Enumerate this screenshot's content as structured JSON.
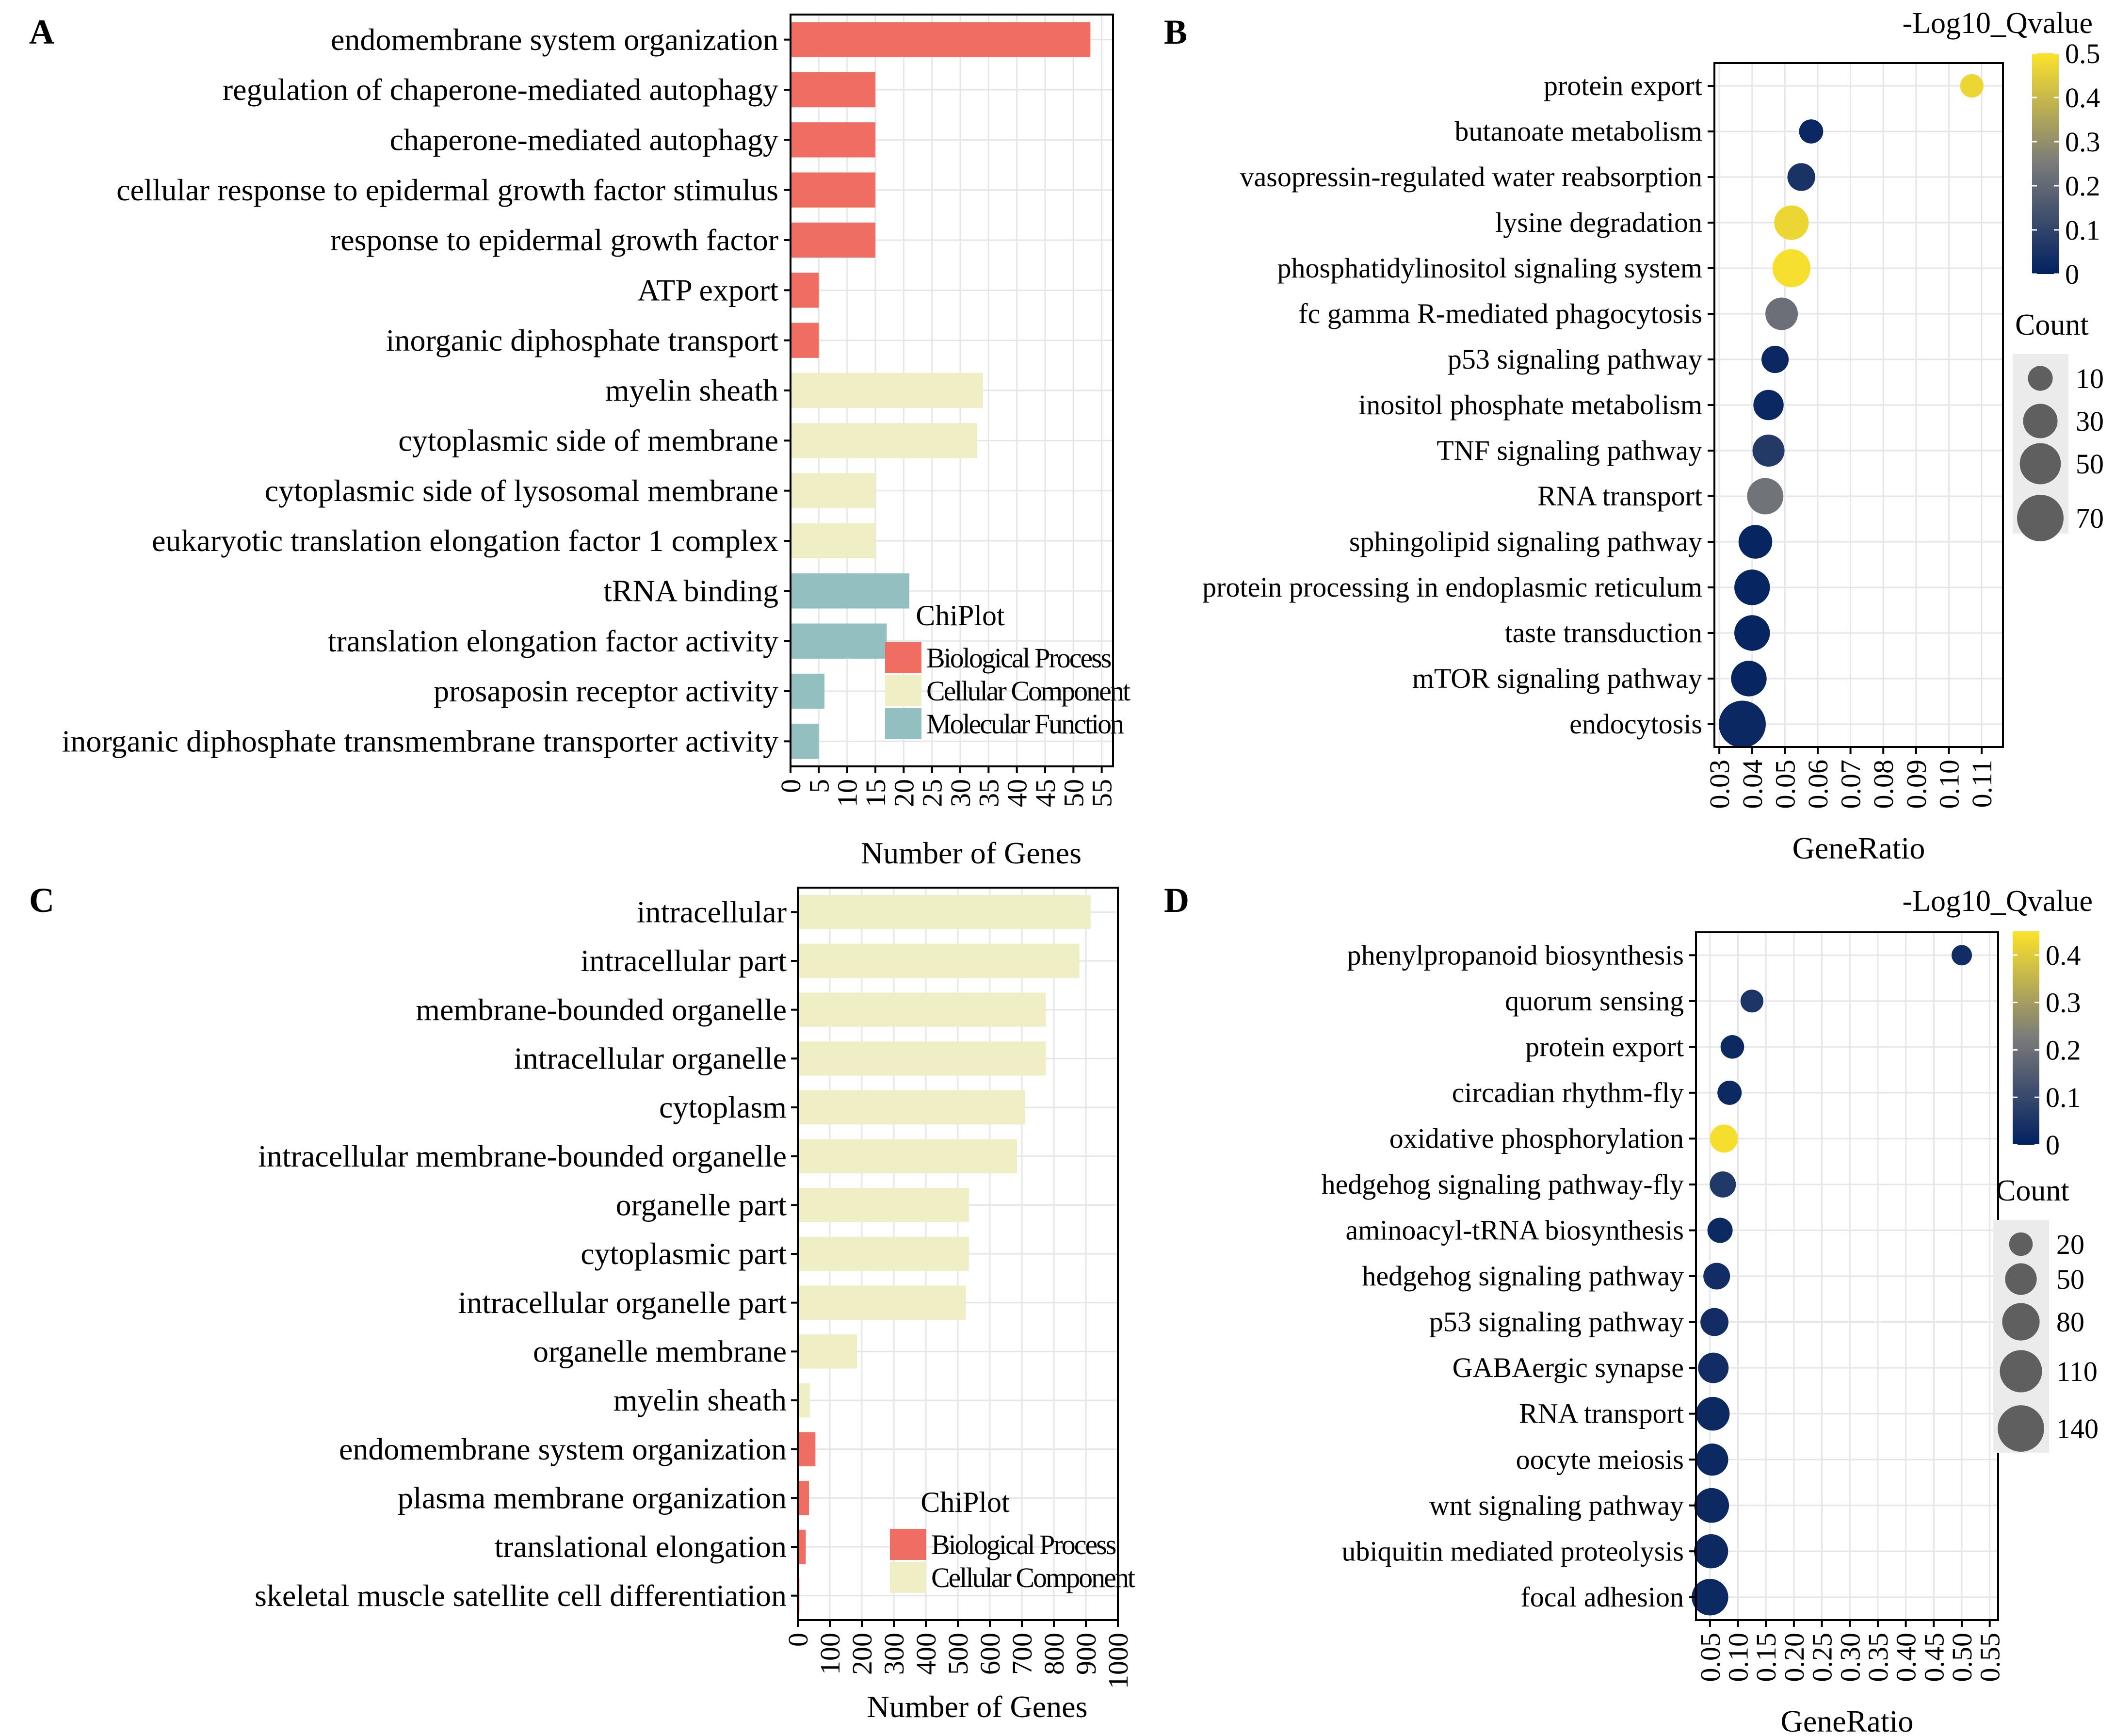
{
  "colors": {
    "bp": "#F06E61",
    "cc": "#F0EEC4",
    "mf": "#92C0C0",
    "grid": "#e6e6e6",
    "grad_low": "#012160",
    "grad_mid": "#7a7a7a",
    "grad_high": "#FBE32A",
    "point_gray": "#5f5f5f"
  },
  "chart_data": [
    {
      "panel": "A",
      "type": "bar",
      "orientation": "horizontal",
      "title": "",
      "xlabel": "Number of Genes",
      "ylabel": "",
      "xlim": [
        0,
        57
      ],
      "xticks": [
        "0",
        "5",
        "10",
        "15",
        "20",
        "25",
        "30",
        "35",
        "40",
        "45",
        "50",
        "55"
      ],
      "grid": true,
      "legend": {
        "title": "ChiPlot",
        "position": "bottom-right",
        "entries": [
          {
            "label": "Biological Process",
            "key": "bp"
          },
          {
            "label": "Cellular Component",
            "key": "cc"
          },
          {
            "label": "Molecular Function",
            "key": "mf"
          }
        ]
      },
      "categories": [
        "endomembrane system organization",
        "regulation of chaperone-mediated autophagy",
        "chaperone-mediated autophagy",
        "cellular response to epidermal growth factor stimulus",
        "response to epidermal growth factor",
        "ATP export",
        "inorganic diphosphate transport",
        "myelin sheath",
        "cytoplasmic side of membrane",
        "cytoplasmic side of lysosomal membrane",
        "eukaryotic translation elongation factor 1 complex",
        "tRNA binding",
        "translation elongation factor activity",
        "prosaposin receptor activity",
        "inorganic diphosphate transmembrane transporter activity"
      ],
      "values": [
        53,
        15,
        15,
        15,
        15,
        5,
        5,
        34,
        33,
        15,
        15,
        21,
        17,
        6,
        5
      ],
      "groups": [
        "bp",
        "bp",
        "bp",
        "bp",
        "bp",
        "bp",
        "bp",
        "cc",
        "cc",
        "cc",
        "cc",
        "mf",
        "mf",
        "mf",
        "mf"
      ]
    },
    {
      "panel": "B",
      "type": "scatter",
      "title": "",
      "xlabel": "GeneRatio",
      "ylabel": "",
      "xlim": [
        0.0285,
        0.1165
      ],
      "xticks": [
        "0.03",
        "0.04",
        "0.05",
        "0.06",
        "0.07",
        "0.08",
        "0.09",
        "0.10",
        "0.11"
      ],
      "grid": true,
      "color_legend": {
        "title": "-Log10_Qvalue",
        "min": 0,
        "max": 0.5,
        "ticks": [
          "0",
          "0.1",
          "0.2",
          "0.3",
          "0.4",
          "0.5"
        ]
      },
      "size_legend": {
        "title": "Count",
        "values": [
          10,
          30,
          50,
          70
        ],
        "labels": [
          "10",
          "30",
          "50",
          "70"
        ]
      },
      "categories": [
        "protein export",
        "butanoate metabolism",
        "vasopressin-regulated water reabsorption",
        "lysine degradation",
        "phosphatidylinositol signaling system",
        "fc gamma R-mediated phagocytosis",
        "p53 signaling pathway",
        "inositol phosphate metabolism",
        "TNF signaling pathway",
        "RNA transport",
        "sphingolipid signaling pathway",
        "protein processing in endoplasmic reticulum",
        "taste transduction",
        "mTOR signaling pathway",
        "endocytosis"
      ],
      "x": [
        0.107,
        0.058,
        0.055,
        0.052,
        0.052,
        0.049,
        0.047,
        0.045,
        0.045,
        0.044,
        0.041,
        0.04,
        0.04,
        0.039,
        0.037
      ],
      "q": [
        0.47,
        0.02,
        0.05,
        0.47,
        0.49,
        0.22,
        0.02,
        0.02,
        0.07,
        0.23,
        0.01,
        0.01,
        0.01,
        0.01,
        0.02
      ],
      "count": [
        8,
        9,
        15,
        30,
        40,
        25,
        14,
        20,
        24,
        35,
        28,
        33,
        33,
        33,
        72
      ]
    },
    {
      "panel": "C",
      "type": "bar",
      "orientation": "horizontal",
      "title": "",
      "xlabel": "Number of Genes",
      "ylabel": "",
      "xlim": [
        0,
        1000
      ],
      "xticks": [
        "0",
        "100",
        "200",
        "300",
        "400",
        "500",
        "600",
        "700",
        "800",
        "900",
        "1000"
      ],
      "grid": true,
      "legend": {
        "title": "ChiPlot",
        "position": "bottom-right",
        "entries": [
          {
            "label": "Biological Process",
            "key": "bp"
          },
          {
            "label": "Cellular Component",
            "key": "cc"
          }
        ]
      },
      "categories": [
        "intracellular",
        "intracellular part",
        "membrane-bounded organelle",
        "intracellular organelle",
        "cytoplasm",
        "intracellular membrane-bounded organelle",
        "organelle part",
        "cytoplasmic part",
        "intracellular organelle part",
        "organelle membrane",
        "myelin sheath",
        "endomembrane system organization",
        "plasma membrane organization",
        "translational elongation",
        "skeletal muscle satellite cell differentiation"
      ],
      "values": [
        915,
        880,
        775,
        775,
        710,
        685,
        535,
        535,
        525,
        185,
        38,
        55,
        35,
        25,
        5
      ],
      "groups": [
        "cc",
        "cc",
        "cc",
        "cc",
        "cc",
        "cc",
        "cc",
        "cc",
        "cc",
        "cc",
        "cc",
        "bp",
        "bp",
        "bp",
        "bp"
      ]
    },
    {
      "panel": "D",
      "type": "scatter",
      "title": "",
      "xlabel": "GeneRatio",
      "ylabel": "",
      "xlim": [
        0.025,
        0.565
      ],
      "xticks": [
        "0.05",
        "0.10",
        "0.15",
        "0.20",
        "0.25",
        "0.30",
        "0.35",
        "0.40",
        "0.45",
        "0.50",
        "0.55"
      ],
      "grid": true,
      "color_legend": {
        "title": "-Log10_Qvalue",
        "min": 0,
        "max": 0.45,
        "ticks": [
          "0",
          "0.1",
          "0.2",
          "0.3",
          "0.4"
        ]
      },
      "size_legend": {
        "title": "Count",
        "values": [
          20,
          50,
          80,
          110,
          140
        ],
        "labels": [
          "20",
          "50",
          "80",
          "110",
          "140"
        ]
      },
      "categories": [
        "phenylpropanoid biosynthesis",
        "quorum sensing",
        "protein export",
        "circadian rhythm-fly",
        "oxidative phosphorylation",
        "hedgehog signaling pathway-fly",
        "aminoacyl-tRNA biosynthesis",
        "hedgehog signaling pathway",
        "p53 signaling pathway",
        "GABAergic synapse",
        "RNA transport",
        "oocyte meiosis",
        "wnt signaling pathway",
        "ubiquitin mediated proteolysis",
        "focal adhesion"
      ],
      "x": [
        0.5,
        0.125,
        0.09,
        0.085,
        0.075,
        0.073,
        0.068,
        0.062,
        0.058,
        0.056,
        0.055,
        0.054,
        0.053,
        0.052,
        0.05
      ],
      "q": [
        0.03,
        0.05,
        0.02,
        0.02,
        0.44,
        0.06,
        0.02,
        0.03,
        0.03,
        0.03,
        0.02,
        0.02,
        0.02,
        0.02,
        0.02
      ],
      "count": [
        12,
        18,
        20,
        22,
        35,
        28,
        25,
        30,
        35,
        45,
        60,
        52,
        65,
        62,
        75
      ]
    }
  ],
  "panel_labels": [
    "A",
    "B",
    "C",
    "D"
  ]
}
